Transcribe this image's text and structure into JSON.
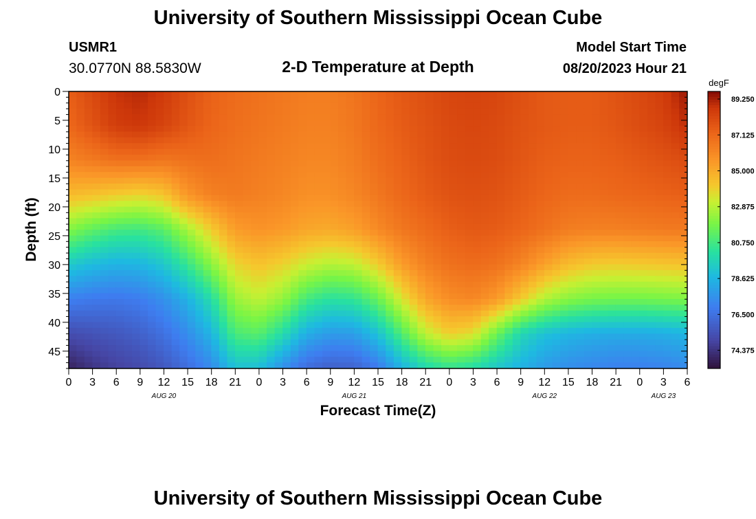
{
  "header": {
    "title": "University of Southern Mississippi Ocean Cube",
    "station_id": "USMR1",
    "station_coords": "30.0770N  88.5830W",
    "plot_title": "2-D Temperature at Depth",
    "model_start_label": "Model Start Time",
    "model_start_value": "08/20/2023 Hour 21"
  },
  "footer": {
    "title": "University of Southern Mississippi Ocean Cube"
  },
  "chart_data": {
    "type": "heatmap",
    "title": "2-D Temperature at Depth",
    "xlabel": "Forecast Time(Z)",
    "ylabel": "Depth (ft)",
    "colorbar_label": "degF",
    "xlim_hours": [
      0,
      78
    ],
    "ylim_ft": [
      0,
      48
    ],
    "y_reversed": true,
    "x_ticks": [
      {
        "hour": 0,
        "label": "0"
      },
      {
        "hour": 3,
        "label": "3"
      },
      {
        "hour": 6,
        "label": "6"
      },
      {
        "hour": 9,
        "label": "9"
      },
      {
        "hour": 12,
        "label": "12"
      },
      {
        "hour": 15,
        "label": "15"
      },
      {
        "hour": 18,
        "label": "18"
      },
      {
        "hour": 21,
        "label": "21"
      },
      {
        "hour": 24,
        "label": "0"
      },
      {
        "hour": 27,
        "label": "3"
      },
      {
        "hour": 30,
        "label": "6"
      },
      {
        "hour": 33,
        "label": "9"
      },
      {
        "hour": 36,
        "label": "12"
      },
      {
        "hour": 39,
        "label": "15"
      },
      {
        "hour": 42,
        "label": "18"
      },
      {
        "hour": 45,
        "label": "21"
      },
      {
        "hour": 48,
        "label": "0"
      },
      {
        "hour": 51,
        "label": "3"
      },
      {
        "hour": 54,
        "label": "6"
      },
      {
        "hour": 57,
        "label": "9"
      },
      {
        "hour": 60,
        "label": "12"
      },
      {
        "hour": 63,
        "label": "15"
      },
      {
        "hour": 66,
        "label": "18"
      },
      {
        "hour": 69,
        "label": "21"
      },
      {
        "hour": 72,
        "label": "0"
      },
      {
        "hour": 75,
        "label": "3"
      },
      {
        "hour": 78,
        "label": "6"
      }
    ],
    "date_labels": [
      {
        "hour": 12,
        "label": "AUG 20"
      },
      {
        "hour": 36,
        "label": "AUG 21"
      },
      {
        "hour": 60,
        "label": "AUG 22"
      },
      {
        "hour": 75,
        "label": "AUG 23"
      }
    ],
    "y_ticks": [
      0,
      5,
      10,
      15,
      20,
      25,
      30,
      35,
      40,
      45
    ],
    "colorbar_range": [
      73.3,
      89.7
    ],
    "colorbar_ticks": [
      "89.250",
      "87.125",
      "85.000",
      "82.875",
      "80.750",
      "78.625",
      "76.500",
      "74.375"
    ],
    "grid_x_hours": [
      0,
      3,
      6,
      9,
      12,
      15,
      18,
      21,
      24,
      27,
      30,
      33,
      36,
      39,
      42,
      45,
      48,
      51,
      54,
      57,
      60,
      63,
      66,
      69,
      72,
      75,
      78
    ],
    "grid_depths_ft": [
      0,
      6,
      12,
      18,
      24,
      30,
      36,
      42,
      48
    ],
    "temperature_degF": [
      [
        87.4,
        88.1,
        88.8,
        89.0,
        88.6,
        87.9,
        87.3,
        87.0,
        86.8,
        86.6,
        86.4,
        86.4,
        86.7,
        87.2,
        87.6,
        87.9,
        88.2,
        88.3,
        88.2,
        87.9,
        87.6,
        87.5,
        87.5,
        87.8,
        88.1,
        88.5,
        89.4
      ],
      [
        87.1,
        87.8,
        88.5,
        88.7,
        88.3,
        87.7,
        87.2,
        86.9,
        86.7,
        86.5,
        86.3,
        86.3,
        86.6,
        87.1,
        87.5,
        87.8,
        88.1,
        88.2,
        88.1,
        87.8,
        87.6,
        87.5,
        87.5,
        87.7,
        88.0,
        88.3,
        88.9
      ],
      [
        86.2,
        86.5,
        86.8,
        86.8,
        86.6,
        86.8,
        86.9,
        86.7,
        86.5,
        86.3,
        86.1,
        86.1,
        86.4,
        86.9,
        87.3,
        87.7,
        88.0,
        88.1,
        88.0,
        87.7,
        87.4,
        87.3,
        87.3,
        87.4,
        87.6,
        87.8,
        88.0
      ],
      [
        84.5,
        84.3,
        84.0,
        83.8,
        84.2,
        85.6,
        86.3,
        86.5,
        86.3,
        86.1,
        85.8,
        85.8,
        86.1,
        86.6,
        87.1,
        87.5,
        87.8,
        87.9,
        87.8,
        87.5,
        87.2,
        87.0,
        87.0,
        87.1,
        87.2,
        87.3,
        87.4
      ],
      [
        82.0,
        81.3,
        80.8,
        80.7,
        81.2,
        82.6,
        84.0,
        85.4,
        85.7,
        85.5,
        85.1,
        85.0,
        85.3,
        86.0,
        86.6,
        87.0,
        87.4,
        87.6,
        87.5,
        87.2,
        86.8,
        86.4,
        86.3,
        86.3,
        86.4,
        86.5,
        86.5
      ],
      [
        79.3,
        78.8,
        78.5,
        78.6,
        79.2,
        80.5,
        82.1,
        83.8,
        84.3,
        83.9,
        83.2,
        82.8,
        83.0,
        84.0,
        85.4,
        86.3,
        86.8,
        87.0,
        86.8,
        86.2,
        85.3,
        84.5,
        84.1,
        84.0,
        84.1,
        84.2,
        84.3
      ],
      [
        77.0,
        76.8,
        76.7,
        76.9,
        77.5,
        78.5,
        80.0,
        82.4,
        83.0,
        82.3,
        80.8,
        80.2,
        80.4,
        81.5,
        83.4,
        85.1,
        85.9,
        86.1,
        85.5,
        84.1,
        82.8,
        82.1,
        81.8,
        81.7,
        81.7,
        81.8,
        81.9
      ],
      [
        75.2,
        75.4,
        75.6,
        75.9,
        76.5,
        77.4,
        78.6,
        80.9,
        81.2,
        80.0,
        78.4,
        77.8,
        77.9,
        79.0,
        81.0,
        83.0,
        84.0,
        83.6,
        81.6,
        79.8,
        79.0,
        78.6,
        78.4,
        78.3,
        78.3,
        78.4,
        78.6
      ],
      [
        73.8,
        74.4,
        74.8,
        75.1,
        75.6,
        76.4,
        77.3,
        79.0,
        78.9,
        77.5,
        76.3,
        75.9,
        76.0,
        76.8,
        78.5,
        79.8,
        80.4,
        80.0,
        79.2,
        78.5,
        77.8,
        77.4,
        77.2,
        77.0,
        77.0,
        77.1,
        77.3
      ]
    ]
  }
}
